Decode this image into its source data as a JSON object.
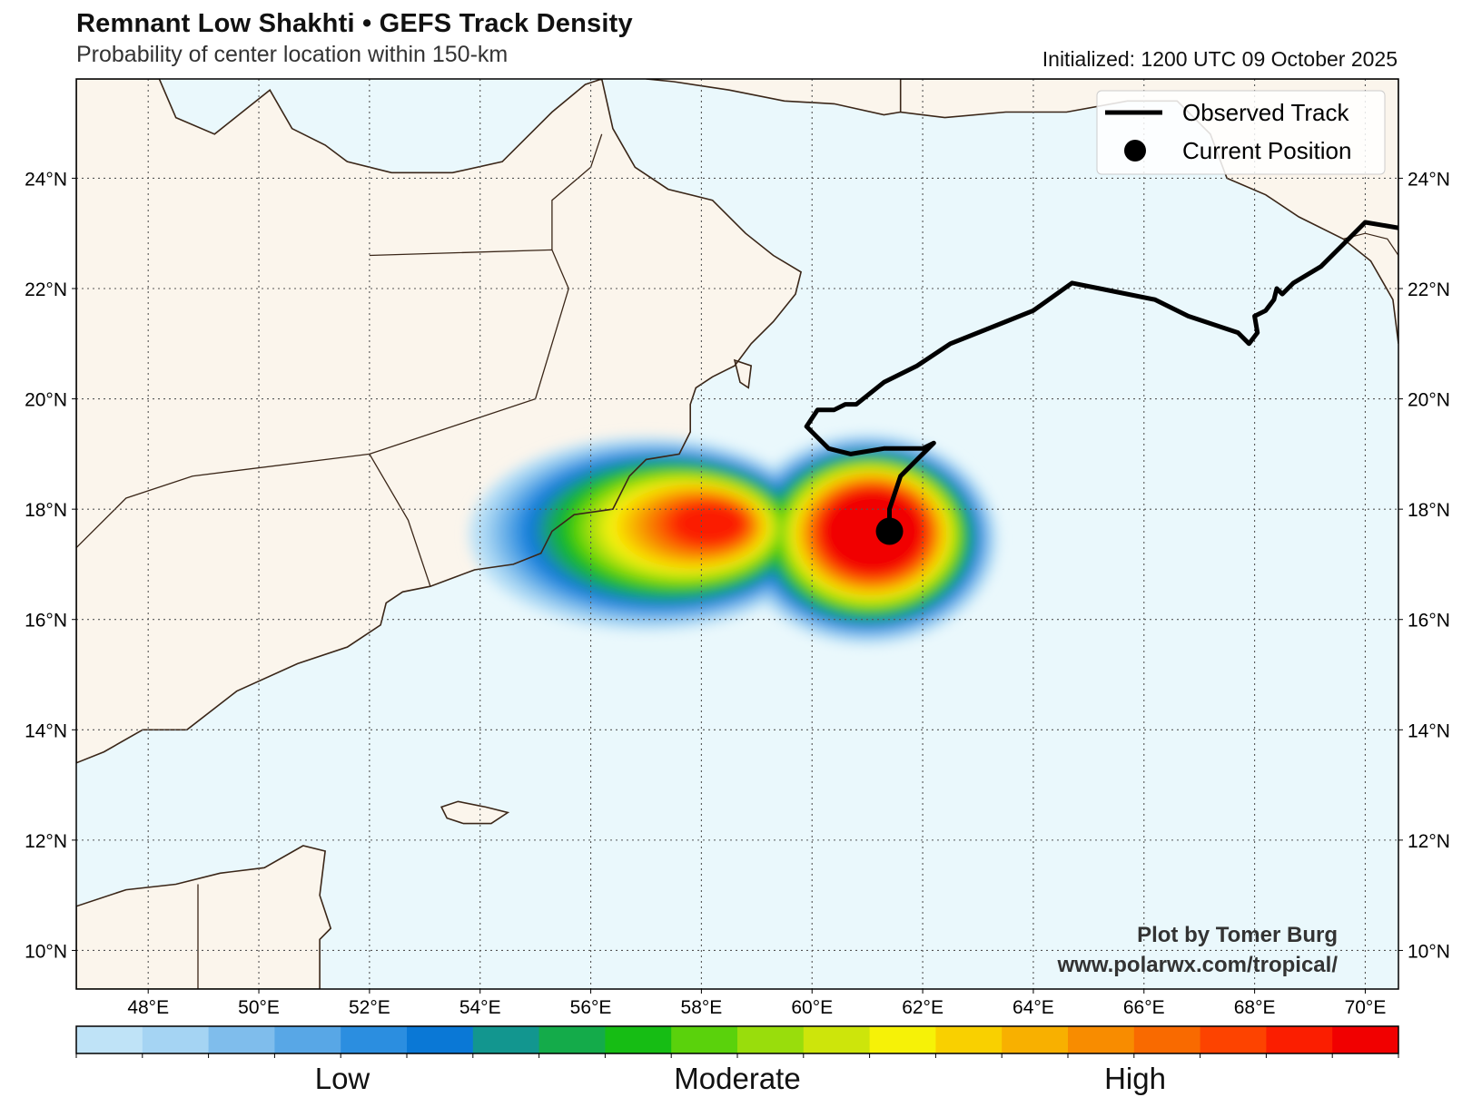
{
  "header": {
    "title": "Remnant Low Shakhti • GEFS Track Density",
    "subtitle": "Probability of center location within 150-km",
    "initialized": "Initialized: 1200 UTC 09 October 2025"
  },
  "legend": {
    "observed_label": "Observed Track",
    "current_label": "Current Position"
  },
  "credit": {
    "line1": "Plot by Tomer Burg",
    "line2": "www.polarwx.com/tropical/"
  },
  "map": {
    "extent": {
      "lon_min": 46.7,
      "lon_max": 70.6,
      "lat_min": 9.3,
      "lat_max": 25.8
    },
    "lon_ticks": [
      "48°E",
      "50°E",
      "52°E",
      "54°E",
      "56°E",
      "58°E",
      "60°E",
      "62°E",
      "64°E",
      "66°E",
      "68°E",
      "70°E"
    ],
    "lat_ticks": [
      "10°N",
      "12°N",
      "14°N",
      "16°N",
      "18°N",
      "20°N",
      "22°N",
      "24°N"
    ],
    "ocean_color": "#eaf8fc",
    "land_color": "#fbf5ec",
    "coast_color": "#3a2618",
    "observed_track": [
      [
        70.6,
        23.1
      ],
      [
        70.0,
        23.2
      ],
      [
        69.6,
        22.8
      ],
      [
        69.2,
        22.4
      ],
      [
        68.7,
        22.1
      ],
      [
        68.5,
        21.9
      ],
      [
        68.4,
        22.0
      ],
      [
        68.35,
        21.8
      ],
      [
        68.2,
        21.6
      ],
      [
        68.0,
        21.5
      ],
      [
        68.05,
        21.2
      ],
      [
        67.9,
        21.0
      ],
      [
        67.7,
        21.2
      ],
      [
        66.8,
        21.5
      ],
      [
        66.2,
        21.8
      ],
      [
        65.2,
        22.0
      ],
      [
        64.7,
        22.1
      ],
      [
        64.0,
        21.6
      ],
      [
        63.5,
        21.4
      ],
      [
        62.5,
        21.0
      ],
      [
        61.9,
        20.6
      ],
      [
        61.3,
        20.3
      ],
      [
        60.8,
        19.9
      ],
      [
        60.6,
        19.9
      ],
      [
        60.4,
        19.8
      ],
      [
        60.1,
        19.8
      ],
      [
        59.9,
        19.5
      ],
      [
        60.1,
        19.3
      ],
      [
        60.3,
        19.1
      ],
      [
        60.7,
        19.0
      ],
      [
        61.3,
        19.1
      ],
      [
        61.8,
        19.1
      ],
      [
        62.0,
        19.1
      ],
      [
        62.2,
        19.2
      ],
      [
        61.9,
        18.9
      ],
      [
        61.6,
        18.6
      ],
      [
        61.5,
        18.3
      ],
      [
        61.4,
        18.0
      ],
      [
        61.4,
        17.6
      ]
    ],
    "current_position": [
      61.4,
      17.6
    ]
  },
  "colorbar": {
    "colors": [
      "#bfe3f7",
      "#a5d4f3",
      "#7fbdec",
      "#58a7e6",
      "#2b8ee0",
      "#0a78d6",
      "#12968f",
      "#14ab4a",
      "#16bd14",
      "#5ad20c",
      "#99dd0c",
      "#cde50b",
      "#f6f207",
      "#f9d000",
      "#f8b000",
      "#f88c00",
      "#f96a00",
      "#fd4300",
      "#fb1e00",
      "#f10000"
    ],
    "labels": [
      "Low",
      "Moderate",
      "High"
    ]
  }
}
